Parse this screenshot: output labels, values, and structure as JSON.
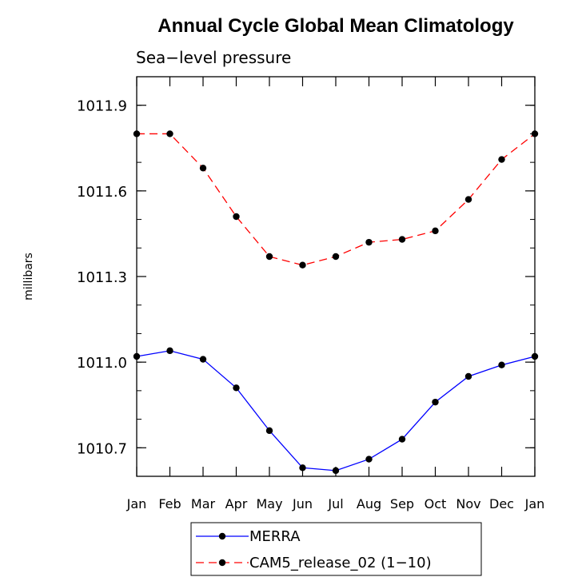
{
  "chart_data": {
    "type": "line",
    "title": "Annual Cycle Global Mean Climatology",
    "subtitle": "Sea−level pressure",
    "ylabel": "millibars",
    "xlabel": "",
    "categories": [
      "Jan",
      "Feb",
      "Mar",
      "Apr",
      "May",
      "Jun",
      "Jul",
      "Aug",
      "Sep",
      "Oct",
      "Nov",
      "Dec",
      "Jan"
    ],
    "ylim": [
      1010.6,
      1012.0
    ],
    "yticks": [
      1010.7,
      1011.0,
      1011.3,
      1011.6,
      1011.9
    ],
    "ytick_labels": [
      "1010.7",
      "1011.0",
      "1011.3",
      "1011.6",
      "1011.9"
    ],
    "y_minor_step": 0.1,
    "grid": false,
    "legend_position": "bottom-center",
    "series": [
      {
        "name": "MERRA",
        "color": "#0000ff",
        "line_style": "solid",
        "marker": "filled-circle",
        "values": [
          1011.02,
          1011.04,
          1011.01,
          1010.91,
          1010.76,
          1010.63,
          1010.62,
          1010.66,
          1010.73,
          1010.86,
          1010.95,
          1010.99,
          1011.02
        ]
      },
      {
        "name": "CAM5_release_02 (1−10)",
        "color": "#ff0000",
        "line_style": "dashed",
        "marker": "filled-circle",
        "values": [
          1011.8,
          1011.8,
          1011.68,
          1011.51,
          1011.37,
          1011.34,
          1011.37,
          1011.42,
          1011.43,
          1011.46,
          1011.57,
          1011.71,
          1011.8
        ]
      }
    ]
  }
}
